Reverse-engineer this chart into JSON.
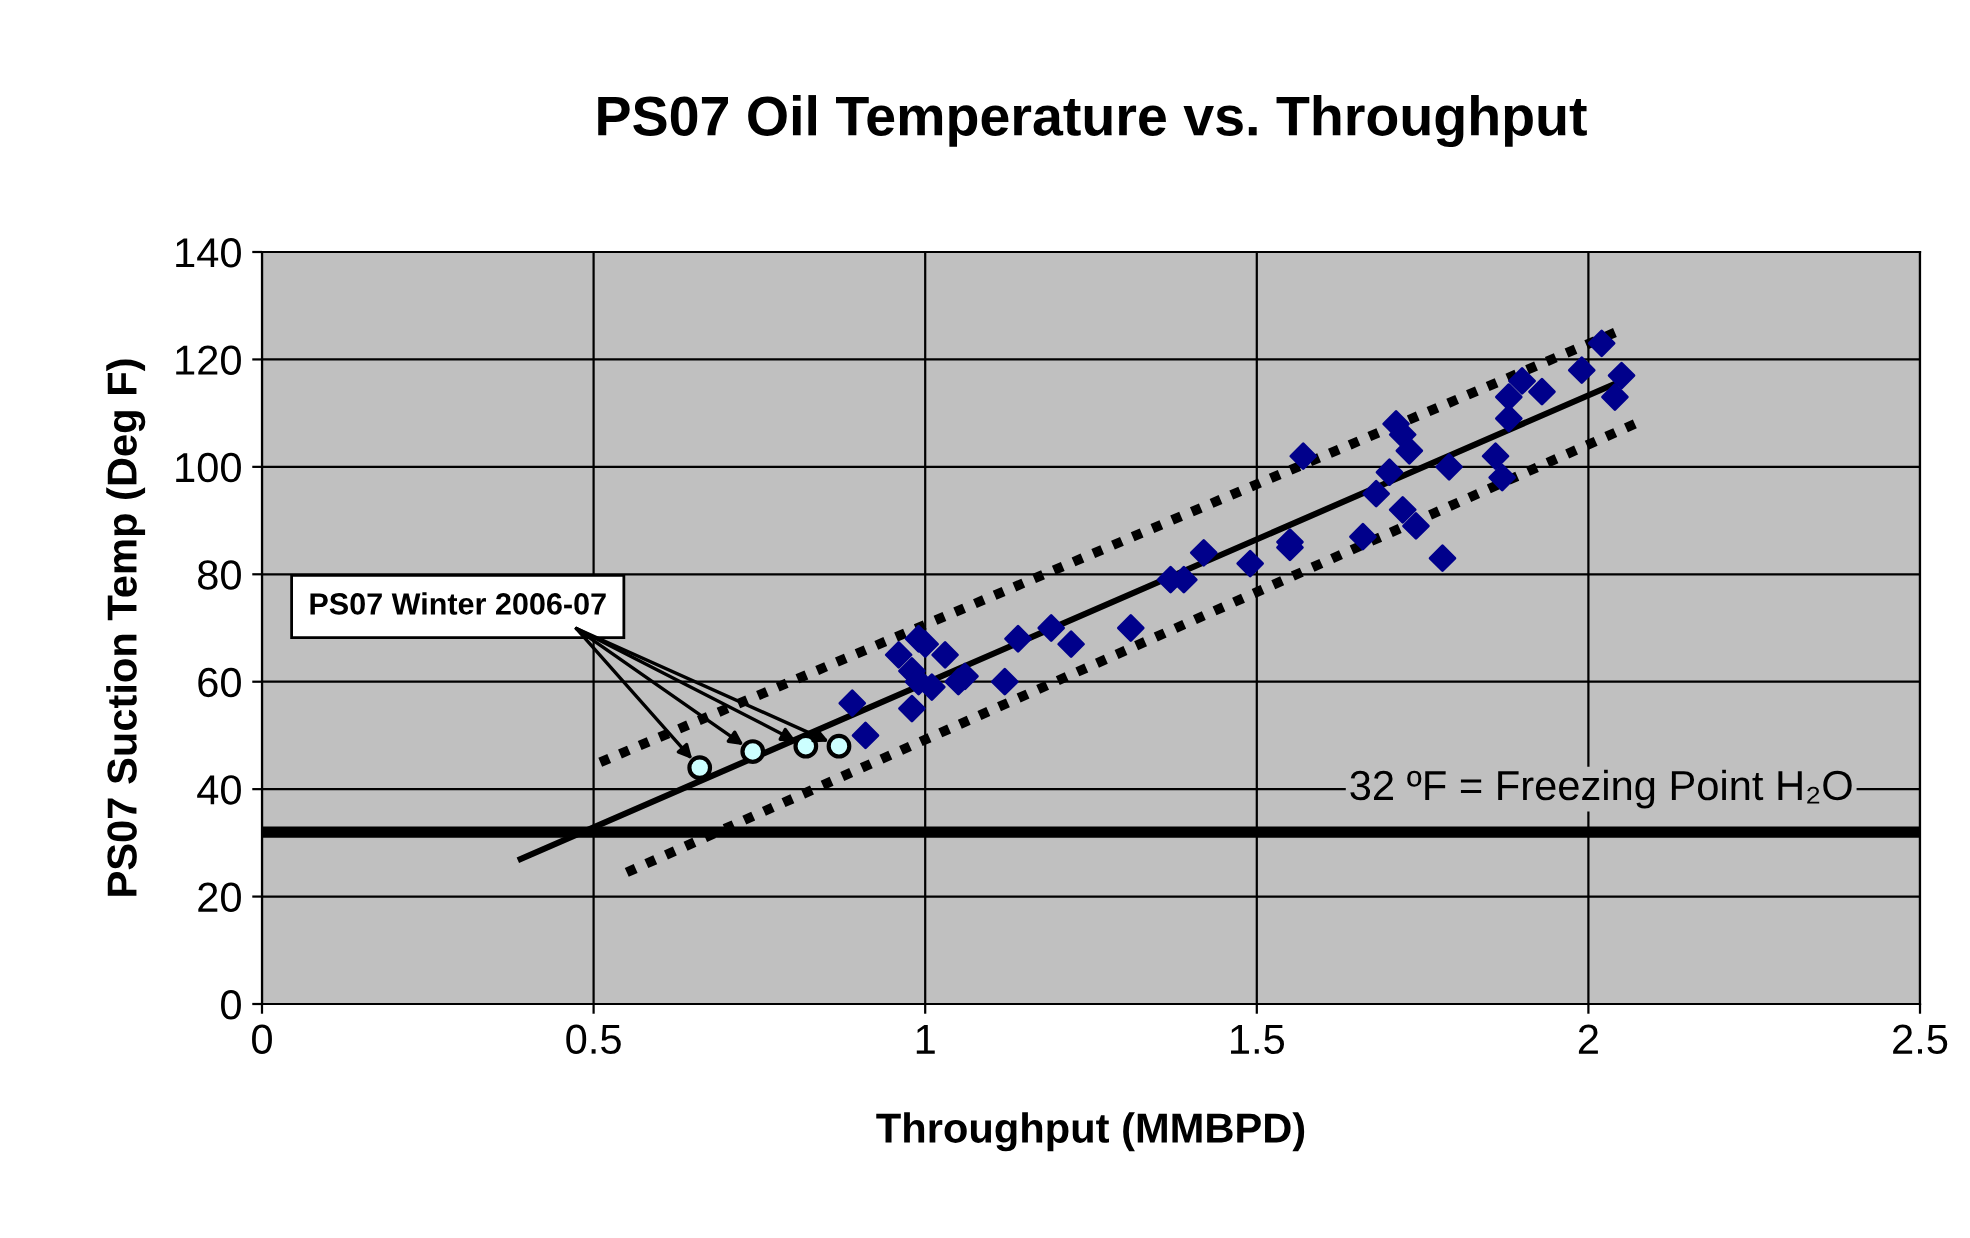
{
  "chart_data": {
    "type": "scatter",
    "title": "PS07 Oil Temperature vs. Throughput",
    "xlabel": "Throughput (MMBPD)",
    "ylabel": "PS07 Suction Temp (Deg F)",
    "xlim": [
      0,
      2.5
    ],
    "xticks": [
      0,
      0.5,
      1,
      1.5,
      2,
      2.5
    ],
    "ylim": [
      0,
      140
    ],
    "yticks": [
      0,
      20,
      40,
      60,
      80,
      100,
      120,
      140
    ],
    "grid": true,
    "legend": false,
    "series": [
      {
        "type": "scatter",
        "marker": "diamond",
        "color": "#00008b",
        "x": [
          0.89,
          0.91,
          0.96,
          0.98,
          0.98,
          0.99,
          1.0,
          0.99,
          1.01,
          1.03,
          1.05,
          1.06,
          1.12,
          1.14,
          1.19,
          1.22,
          1.31,
          1.37,
          1.39,
          1.42,
          1.49,
          1.55,
          1.55,
          1.57,
          1.66,
          1.68,
          1.7,
          1.71,
          1.72,
          1.72,
          1.73,
          1.74,
          1.78,
          1.79,
          1.86,
          1.87,
          1.88,
          1.88,
          1.9,
          1.93,
          1.99,
          2.02,
          2.04,
          2.05
        ],
        "values": [
          56,
          50,
          65,
          55,
          62,
          68,
          67,
          60,
          59,
          65,
          60,
          61,
          60,
          68,
          70,
          67,
          70,
          79,
          79,
          84,
          82,
          85,
          86,
          102,
          87,
          95,
          99,
          108,
          106,
          92,
          103,
          89,
          83,
          100,
          102,
          98,
          109,
          113,
          116,
          114,
          118,
          123,
          113,
          117
        ]
      },
      {
        "type": "scatter",
        "marker": "circle",
        "color": "#ccffff",
        "x": [
          0.66,
          0.74,
          0.82,
          0.87
        ],
        "values": [
          44,
          47,
          48,
          48
        ]
      },
      {
        "type": "line",
        "line_style": "solid",
        "color": "#000000",
        "x": [
          0.39,
          2.05
        ],
        "values": [
          27,
          116
        ]
      },
      {
        "type": "line",
        "line_style": "dotted",
        "color": "#000000",
        "x": [
          0.51,
          2.04
        ],
        "values": [
          45,
          125
        ]
      },
      {
        "type": "line",
        "line_style": "dotted",
        "color": "#000000",
        "x": [
          0.55,
          2.07
        ],
        "values": [
          24.5,
          108
        ]
      }
    ],
    "ref_lines": [
      {
        "axis": "y",
        "value": 32,
        "label": "32 ºF = Freezing Point H₂O",
        "color": "#000000"
      }
    ],
    "annotations": [
      {
        "text": "PS07 Winter 2006-07",
        "x": 0.66,
        "y": 44
      }
    ]
  }
}
